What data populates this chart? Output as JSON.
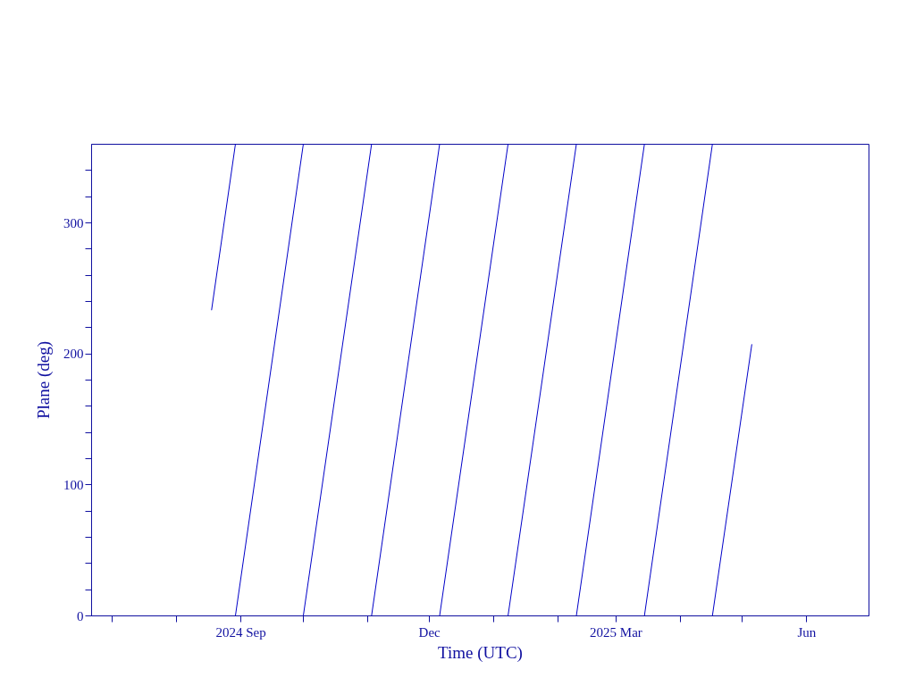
{
  "chart_data": {
    "type": "line",
    "xlabel": "Time (UTC)",
    "ylabel": "Plane (deg)",
    "series": [
      {
        "color": "#0000c8",
        "x": [
          "2024-08-18T02:00",
          "2024-08-29T15:00"
        ],
        "values": [
          233,
          360
        ]
      },
      {
        "color": "#0000c8",
        "x": [
          "2024-08-29T15:00",
          "2024-10-01T09:00"
        ],
        "values": [
          0,
          360
        ]
      },
      {
        "color": "#0000c8",
        "x": [
          "2024-10-01T09:00",
          "2024-11-03T07:00"
        ],
        "values": [
          0,
          360
        ]
      },
      {
        "color": "#0000c8",
        "x": [
          "2024-11-03T07:00",
          "2024-12-06T03:00"
        ],
        "values": [
          0,
          360
        ]
      },
      {
        "color": "#0000c8",
        "x": [
          "2024-12-06T03:00",
          "2025-01-08T03:00"
        ],
        "values": [
          0,
          360
        ]
      },
      {
        "color": "#0000c8",
        "x": [
          "2025-01-08T03:00",
          "2025-02-10T02:00"
        ],
        "values": [
          0,
          360
        ]
      },
      {
        "color": "#0000c8",
        "x": [
          "2025-02-10T02:00",
          "2025-03-14T22:00"
        ],
        "values": [
          0,
          360
        ]
      },
      {
        "color": "#0000c8",
        "x": [
          "2025-03-14T22:00",
          "2025-04-16T17:00"
        ],
        "values": [
          0,
          360
        ]
      },
      {
        "color": "#0000c8",
        "x": [
          "2025-04-16T17:00",
          "2025-05-05T17:00"
        ],
        "values": [
          0,
          207
        ]
      }
    ],
    "xlim": [
      "2024-06-21",
      "2025-07-01"
    ],
    "xticks": [
      {
        "value": "2024-07-01",
        "label": null
      },
      {
        "value": "2024-08-01",
        "label": null
      },
      {
        "value": "2024-09-01",
        "label": "2024 Sep"
      },
      {
        "value": "2024-10-01",
        "label": null
      },
      {
        "value": "2024-11-01",
        "label": null
      },
      {
        "value": "2024-12-01",
        "label": "Dec"
      },
      {
        "value": "2025-01-01",
        "label": null
      },
      {
        "value": "2025-02-01",
        "label": null
      },
      {
        "value": "2025-03-01",
        "label": "2025 Mar"
      },
      {
        "value": "2025-04-01",
        "label": null
      },
      {
        "value": "2025-05-01",
        "label": null
      },
      {
        "value": "2025-06-01",
        "label": "Jun"
      }
    ],
    "ylim": [
      0,
      360
    ],
    "yticks": [
      {
        "value": 0,
        "label": "0"
      },
      {
        "value": 20,
        "label": null
      },
      {
        "value": 40,
        "label": null
      },
      {
        "value": 60,
        "label": null
      },
      {
        "value": 80,
        "label": null
      },
      {
        "value": 100,
        "label": "100"
      },
      {
        "value": 120,
        "label": null
      },
      {
        "value": 140,
        "label": null
      },
      {
        "value": 160,
        "label": null
      },
      {
        "value": 180,
        "label": null
      },
      {
        "value": 200,
        "label": "200"
      },
      {
        "value": 220,
        "label": null
      },
      {
        "value": 240,
        "label": null
      },
      {
        "value": 260,
        "label": null
      },
      {
        "value": 280,
        "label": null
      },
      {
        "value": 300,
        "label": "300"
      },
      {
        "value": 320,
        "label": null
      },
      {
        "value": 340,
        "label": null
      }
    ],
    "grid": false,
    "line_style": "solid",
    "marker": "none"
  }
}
